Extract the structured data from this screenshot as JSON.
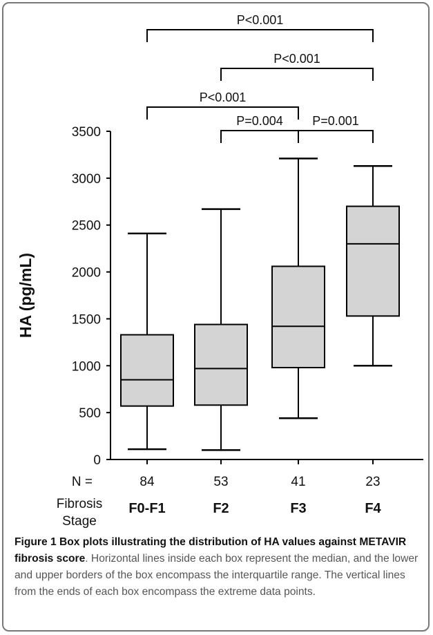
{
  "chart_data": {
    "type": "box",
    "ylabel": "HA (pg/mL)",
    "ylim": [
      0,
      3500
    ],
    "yticks": [
      0,
      500,
      1000,
      1500,
      2000,
      2500,
      3000,
      3500
    ],
    "n_label": "N =",
    "stage_label": [
      "Fibrosis",
      "Stage"
    ],
    "categories": [
      "F0-F1",
      "F2",
      "F3",
      "F4"
    ],
    "n": [
      "84",
      "53",
      "41",
      "23"
    ],
    "boxes": [
      {
        "category": "F0-F1",
        "min": 110,
        "q1": 570,
        "median": 850,
        "q3": 1330,
        "max": 2410
      },
      {
        "category": "F2",
        "min": 100,
        "q1": 580,
        "median": 970,
        "q3": 1440,
        "max": 2670
      },
      {
        "category": "F3",
        "min": 440,
        "q1": 980,
        "median": 1420,
        "q3": 2060,
        "max": 3210
      },
      {
        "category": "F4",
        "min": 1000,
        "q1": 1530,
        "median": 2300,
        "q3": 2700,
        "max": 3130
      }
    ],
    "comparisons": [
      {
        "from": "F0-F1",
        "to": "F4",
        "label": "P<0.001"
      },
      {
        "from": "F2",
        "to": "F4",
        "label": "P<0.001"
      },
      {
        "from": "F0-F1",
        "to": "F3",
        "label": "P<0.001"
      },
      {
        "from": "F2",
        "to": "F3",
        "label": "P=0.004"
      },
      {
        "from": "F3",
        "to": "F4",
        "label": "P=0.001"
      }
    ],
    "colors": {
      "box_fill": "#d4d4d4",
      "line": "#000000"
    }
  },
  "caption": {
    "title": "Figure 1 Box plots illustrating the distribution of HA values against METAVIR fibrosis score",
    "body": ". Horizontal lines inside each box represent the median, and the lower and upper borders of the box encompass the interquartile range. The vertical lines from the ends of each box encompass the extreme data points."
  }
}
